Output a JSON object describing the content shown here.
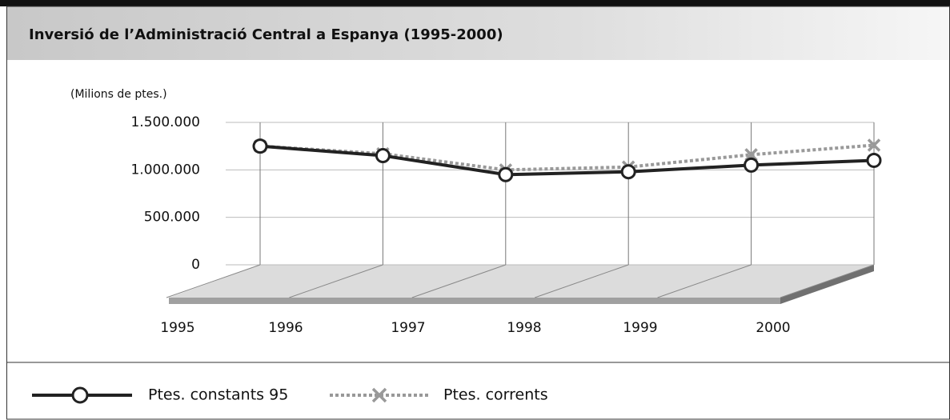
{
  "chart_data": {
    "type": "line",
    "title": "Inversió de l’Administració Central a Espanya (1995-2000)",
    "y_axis_label": "(Milions de ptes.)",
    "categories": [
      "1995",
      "1996",
      "1997",
      "1998",
      "1999",
      "2000"
    ],
    "series": [
      {
        "name": "Ptes. constants 95",
        "color": "#222222",
        "values": [
          1250000,
          1150000,
          950000,
          980000,
          1050000,
          1100000
        ]
      },
      {
        "name": "Ptes. corrents",
        "color": "#999999",
        "values": [
          1250000,
          1170000,
          1000000,
          1030000,
          1160000,
          1260000
        ]
      }
    ],
    "ylim": [
      0,
      1500000
    ],
    "yticks": [
      0,
      {
        "value": 500000,
        "label": "500.000"
      },
      {
        "value": 1000000,
        "label": "1.000.000"
      },
      {
        "value": 1500000,
        "label": "1.500.000"
      }
    ],
    "grid": true
  }
}
